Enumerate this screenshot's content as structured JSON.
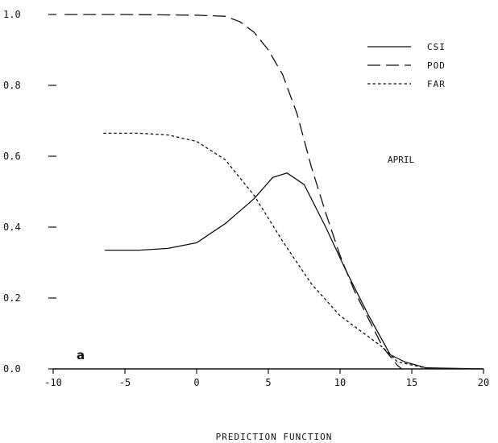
{
  "chart_data": {
    "type": "line",
    "title": "",
    "xlabel": "PREDICTION FUNCTION",
    "ylabel": "",
    "xlim": [
      -10,
      20
    ],
    "ylim": [
      0,
      1.0
    ],
    "xticks": [
      -10,
      -5,
      0,
      5,
      10,
      15,
      20
    ],
    "xtick_labels": [
      "-10",
      "-5",
      "0",
      "5",
      "10",
      "15",
      "20"
    ],
    "yticks": [
      0,
      0.2,
      0.4,
      0.6,
      0.8,
      1.0
    ],
    "ytick_labels": [
      "0.0",
      "0.2",
      "0.4",
      "0.6",
      "0.8",
      "1.0"
    ],
    "grid": false,
    "legend_position": "top-right",
    "annotation": "APRIL",
    "panel_label": "a",
    "series": [
      {
        "name": "CSI",
        "style": "solid",
        "x": [
          -6.4,
          -4,
          -2,
          0,
          2,
          4,
          5.3,
          6.3,
          7.5,
          9,
          10.5,
          12,
          13.5,
          14.5,
          16,
          20
        ],
        "y": [
          0.335,
          0.335,
          0.34,
          0.356,
          0.41,
          0.48,
          0.54,
          0.553,
          0.52,
          0.4,
          0.27,
          0.15,
          0.04,
          0.02,
          0.003,
          0.0
        ]
      },
      {
        "name": "POD",
        "style": "long-dash",
        "x": [
          -9.2,
          -5,
          0,
          2,
          3,
          4,
          5,
          6,
          7,
          8,
          9,
          10,
          11,
          12,
          13,
          14,
          14.3
        ],
        "y": [
          1.0,
          1.0,
          0.998,
          0.995,
          0.98,
          0.95,
          0.9,
          0.83,
          0.72,
          0.57,
          0.44,
          0.32,
          0.22,
          0.14,
          0.06,
          0.01,
          0.0
        ]
      },
      {
        "name": "FAR",
        "style": "short-dash",
        "x": [
          -6.5,
          -4,
          -2,
          0,
          2,
          4,
          6,
          8,
          10,
          12,
          13,
          14,
          16,
          20
        ],
        "y": [
          0.665,
          0.665,
          0.66,
          0.642,
          0.59,
          0.49,
          0.36,
          0.24,
          0.15,
          0.09,
          0.06,
          0.02,
          0.002,
          0.0
        ]
      }
    ]
  }
}
